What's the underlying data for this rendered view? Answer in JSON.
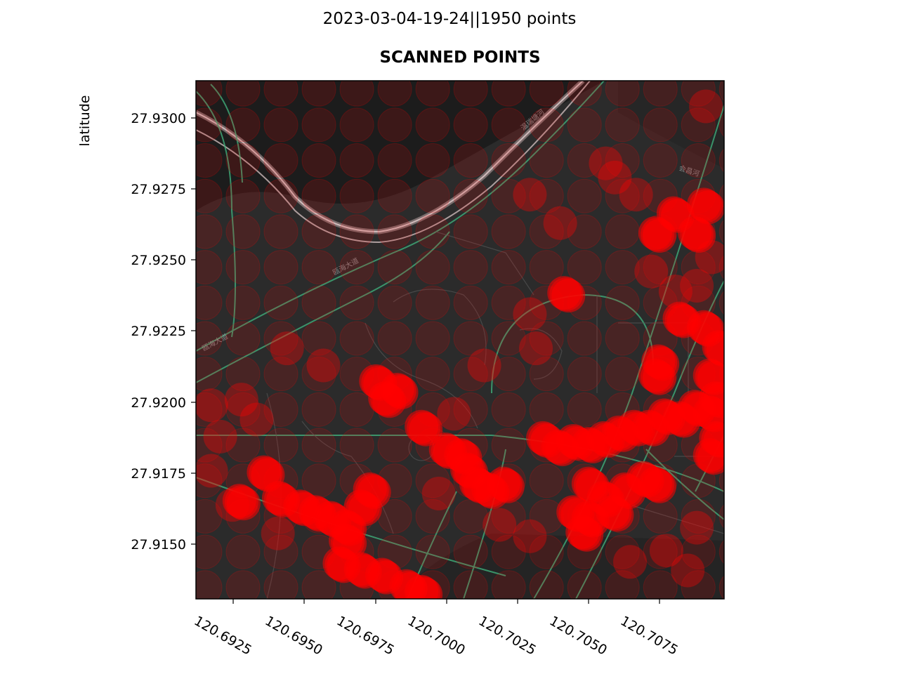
{
  "figure": {
    "suptitle": "2023-03-04-19-24||1950 points"
  },
  "chart_data": {
    "type": "scatter",
    "title": "SCANNED POINTS",
    "xlabel": "",
    "ylabel": "latitude",
    "xlim": [
      120.692,
      120.7094
    ],
    "ylim": [
      27.913,
      27.9312
    ],
    "x_ticks": [
      "120.6925",
      "120.6950",
      "120.6975",
      "120.7000",
      "120.7025",
      "120.7050",
      "120.7075"
    ],
    "y_ticks": [
      "27.9150",
      "27.9175",
      "27.9200",
      "27.9225",
      "27.9250",
      "27.9275",
      "27.9300"
    ],
    "background": "dark street map tiles",
    "marker_color": "#ff0000",
    "grid": false,
    "legend": "none",
    "dense_points": [
      [
        120.698,
        27.9206
      ],
      [
        120.6987,
        27.9203
      ],
      [
        120.6983,
        27.92
      ],
      [
        120.6995,
        27.919
      ],
      [
        120.7003,
        27.9182
      ],
      [
        120.7008,
        27.918
      ],
      [
        120.701,
        27.9175
      ],
      [
        120.7013,
        27.917
      ],
      [
        120.7017,
        27.9168
      ],
      [
        120.7022,
        27.917
      ],
      [
        120.6943,
        27.9174
      ],
      [
        120.6948,
        27.9165
      ],
      [
        120.6955,
        27.9162
      ],
      [
        120.696,
        27.916
      ],
      [
        120.6965,
        27.9158
      ],
      [
        120.697,
        27.9155
      ],
      [
        120.6975,
        27.9162
      ],
      [
        120.6978,
        27.9168
      ],
      [
        120.697,
        27.915
      ],
      [
        120.6968,
        27.9142
      ],
      [
        120.6975,
        27.914
      ],
      [
        120.6982,
        27.9138
      ],
      [
        120.699,
        27.9134
      ],
      [
        120.6995,
        27.9132
      ],
      [
        120.6935,
        27.9164
      ],
      [
        120.7035,
        27.9186
      ],
      [
        120.704,
        27.9183
      ],
      [
        120.7045,
        27.9185
      ],
      [
        120.705,
        27.9184
      ],
      [
        120.7055,
        27.9186
      ],
      [
        120.706,
        27.9188
      ],
      [
        120.7065,
        27.919
      ],
      [
        120.707,
        27.919
      ],
      [
        120.7075,
        27.9194
      ],
      [
        120.708,
        27.9193
      ],
      [
        120.7085,
        27.9197
      ],
      [
        120.709,
        27.9195
      ],
      [
        120.7092,
        27.9186
      ],
      [
        120.709,
        27.918
      ],
      [
        120.7073,
        27.9213
      ],
      [
        120.7072,
        27.9208
      ],
      [
        120.708,
        27.9228
      ],
      [
        120.7088,
        27.9225
      ],
      [
        120.7093,
        27.9218
      ],
      [
        120.709,
        27.9208
      ],
      [
        120.7092,
        27.92
      ],
      [
        120.705,
        27.917
      ],
      [
        120.7055,
        27.9165
      ],
      [
        120.7058,
        27.916
      ],
      [
        120.705,
        27.9158
      ],
      [
        120.7045,
        27.916
      ],
      [
        120.7048,
        27.9153
      ],
      [
        120.7062,
        27.9168
      ],
      [
        120.7068,
        27.9172
      ],
      [
        120.7072,
        27.917
      ],
      [
        120.7042,
        27.9237
      ],
      [
        120.7072,
        27.9258
      ],
      [
        120.7078,
        27.9265
      ],
      [
        120.7085,
        27.9258
      ],
      [
        120.7088,
        27.9268
      ]
    ],
    "medium_points": [
      [
        120.694,
        27.9193
      ],
      [
        120.6935,
        27.92
      ],
      [
        120.6928,
        27.9187
      ],
      [
        120.6962,
        27.9212
      ],
      [
        120.695,
        27.9218
      ],
      [
        120.7015,
        27.9212
      ],
      [
        120.7032,
        27.9218
      ],
      [
        120.704,
        27.9262
      ],
      [
        120.703,
        27.9272
      ],
      [
        120.7058,
        27.9278
      ],
      [
        120.7065,
        27.9272
      ],
      [
        120.707,
        27.9245
      ],
      [
        120.7078,
        27.9238
      ],
      [
        120.7085,
        27.924
      ],
      [
        120.709,
        27.925
      ],
      [
        120.7063,
        27.9143
      ],
      [
        120.7075,
        27.9147
      ],
      [
        120.7082,
        27.914
      ],
      [
        120.7085,
        27.9155
      ],
      [
        120.6925,
        27.9175
      ],
      [
        120.6932,
        27.9163
      ],
      [
        120.6947,
        27.9153
      ],
      [
        120.7,
        27.9167
      ],
      [
        120.7005,
        27.9195
      ],
      [
        120.702,
        27.9156
      ],
      [
        120.703,
        27.923
      ],
      [
        120.7055,
        27.9283
      ],
      [
        120.7088,
        27.9303
      ],
      [
        120.703,
        27.9152
      ],
      [
        120.6925,
        27.9198
      ]
    ]
  }
}
